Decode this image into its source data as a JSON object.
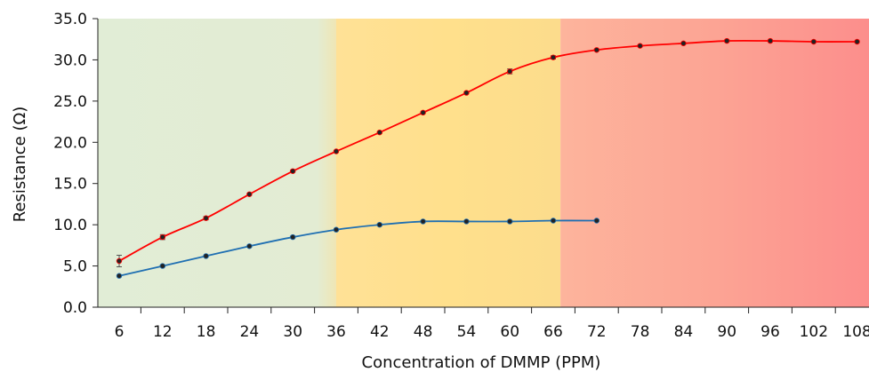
{
  "chart_data": {
    "type": "line",
    "xlabel": "Concentration of DMMP (PPM)",
    "ylabel": "Resistance  (Ω)",
    "ylim": [
      0,
      35
    ],
    "y_ticks": [
      "0.0",
      "5.0",
      "10.0",
      "15.0",
      "20.0",
      "25.0",
      "30.0",
      "35.0"
    ],
    "categories": [
      "6",
      "12",
      "18",
      "24",
      "30",
      "36",
      "42",
      "48",
      "54",
      "60",
      "66",
      "72",
      "78",
      "84",
      "90",
      "96",
      "102",
      "108"
    ],
    "background_bands": [
      {
        "from": 0,
        "to": 36,
        "color": "#e2edd6"
      },
      {
        "from": 36,
        "to": 67,
        "color": "#ffe08f"
      },
      {
        "from": 67,
        "to": 110,
        "color": "#ff9a8c"
      }
    ],
    "series": [
      {
        "color": "#ff0000",
        "x": [
          6,
          12,
          18,
          24,
          30,
          36,
          42,
          48,
          54,
          60,
          66,
          72,
          78,
          84,
          90,
          96,
          102,
          108
        ],
        "values": [
          5.6,
          8.5,
          10.8,
          13.7,
          16.5,
          18.9,
          21.2,
          23.6,
          26.0,
          28.6,
          30.3,
          31.2,
          31.7,
          32.0,
          32.3,
          32.3,
          32.2,
          32.2
        ],
        "error": [
          0.7,
          0.3,
          0.2,
          0.1,
          0.1,
          0.1,
          0.1,
          0.1,
          0.1,
          0.3,
          0.2,
          0.1,
          0.1,
          0.1,
          0.1,
          0.1,
          0.1,
          0.1
        ]
      },
      {
        "color": "#1f6fb2",
        "x": [
          6,
          12,
          18,
          24,
          30,
          36,
          42,
          48,
          54,
          60,
          66,
          72
        ],
        "values": [
          3.8,
          5.0,
          6.2,
          7.4,
          8.5,
          9.4,
          10.0,
          10.4,
          10.4,
          10.4,
          10.5,
          10.5
        ],
        "error": [
          0.1,
          0.1,
          0.1,
          0.1,
          0.1,
          0.1,
          0.1,
          0.1,
          0.1,
          0.1,
          0.1,
          0.1
        ]
      }
    ]
  }
}
